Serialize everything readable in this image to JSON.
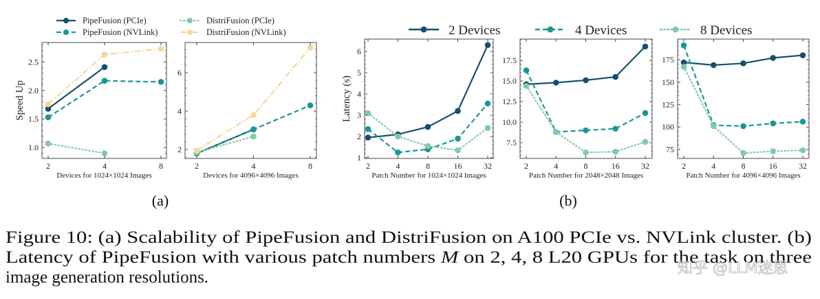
{
  "colors": {
    "dark": "#14506b",
    "teal": "#1b9696",
    "green": "#80cba3",
    "yellow": "#f6d79c"
  },
  "legend_a": [
    {
      "name": "PipeFusion (PCIe)",
      "color": "#14506b",
      "style": "solid"
    },
    {
      "name": "PipeFusion (NVLink)",
      "color": "#1b9696",
      "style": "dashed"
    },
    {
      "name": "DistriFusion (PCIe)",
      "color": "#80cba3",
      "style": "dotted"
    },
    {
      "name": "DistriFusion (NVLink)",
      "color": "#f6d79c",
      "style": "dashdot"
    }
  ],
  "legend_b": [
    {
      "name": "2 Devices",
      "color": "#14506b",
      "style": "solid"
    },
    {
      "name": "4 Devices",
      "color": "#1b9696",
      "style": "dashed"
    },
    {
      "name": "8 Devices",
      "color": "#80cba3",
      "style": "dotted"
    }
  ],
  "chart_data": [
    {
      "type": "line",
      "group": "a",
      "xlabel": "Devices for 1024×1024 Images",
      "ylabel": "Speed Up",
      "categories": [
        "2",
        "4",
        "8"
      ],
      "ylim": [
        0.81,
        2.84
      ],
      "yticks": [
        1.0,
        1.5,
        2.0,
        2.5
      ],
      "yticklabels": [
        "1.0",
        "1.5",
        "2.0",
        "2.5"
      ],
      "series": [
        {
          "name": "PipeFusion (PCIe)",
          "values": [
            1.68,
            2.41,
            null
          ]
        },
        {
          "name": "PipeFusion (NVLink)",
          "values": [
            1.53,
            2.17,
            2.15
          ]
        },
        {
          "name": "DistriFusion (PCIe)",
          "values": [
            1.07,
            0.9,
            null
          ]
        },
        {
          "name": "DistriFusion (NVLink)",
          "values": [
            1.76,
            2.63,
            2.73
          ]
        }
      ]
    },
    {
      "type": "line",
      "group": "a",
      "xlabel": "Devices for 4096×4096 Images",
      "ylabel": "",
      "categories": [
        "2",
        "4",
        "8"
      ],
      "ylim": [
        1.54,
        7.57
      ],
      "yticks": [
        2,
        4,
        6
      ],
      "yticklabels": [
        "2",
        "4",
        "6"
      ],
      "series": [
        {
          "name": "PipeFusion (PCIe)",
          "values": [
            1.8,
            3.05,
            null
          ]
        },
        {
          "name": "PipeFusion (NVLink)",
          "values": [
            1.8,
            3.05,
            4.3
          ]
        },
        {
          "name": "DistriFusion (PCIe)",
          "values": [
            1.85,
            2.68,
            null
          ]
        },
        {
          "name": "DistriFusion (NVLink)",
          "values": [
            1.95,
            3.8,
            7.3
          ]
        }
      ]
    },
    {
      "type": "line",
      "group": "b",
      "xlabel": "Patch Number for 1024×1024 Images",
      "ylabel": "Latency (s)",
      "categories": [
        "2",
        "4",
        "8",
        "16",
        "32"
      ],
      "ylim": [
        0.97,
        6.58
      ],
      "yticks": [
        1,
        2,
        3,
        4,
        5,
        6
      ],
      "yticklabels": [
        "1",
        "2",
        "3",
        "4",
        "5",
        "6"
      ],
      "series": [
        {
          "name": "2 Devices",
          "values": [
            1.95,
            2.1,
            2.45,
            3.2,
            6.3
          ]
        },
        {
          "name": "4 Devices",
          "values": [
            2.35,
            1.25,
            1.4,
            1.9,
            3.55
          ]
        },
        {
          "name": "8 Devices",
          "values": [
            3.1,
            2.0,
            1.55,
            1.35,
            2.4
          ]
        }
      ]
    },
    {
      "type": "line",
      "group": "b",
      "xlabel": "Patch Number for 2048×2048 Images",
      "ylabel": "",
      "categories": [
        "2",
        "4",
        "8",
        "16",
        "32"
      ],
      "ylim": [
        5.58,
        20.1
      ],
      "yticks": [
        7.5,
        10,
        12.5,
        15,
        17.5
      ],
      "yticklabels": [
        "7.5",
        "10.0",
        "12.5",
        "15.0",
        "17.5"
      ],
      "series": [
        {
          "name": "2 Devices",
          "values": [
            14.6,
            14.8,
            15.1,
            15.5,
            19.2
          ]
        },
        {
          "name": "4 Devices",
          "values": [
            16.3,
            8.8,
            9.0,
            9.2,
            11.1
          ]
        },
        {
          "name": "8 Devices",
          "values": [
            14.4,
            8.8,
            6.3,
            6.4,
            7.6
          ]
        }
      ]
    },
    {
      "type": "line",
      "group": "b",
      "xlabel": "Patch Number for 4096×4096 Images",
      "ylabel": "",
      "categories": [
        "2",
        "4",
        "8",
        "16",
        "32"
      ],
      "ylim": [
        65,
        198
      ],
      "yticks": [
        75,
        100,
        125,
        150,
        175
      ],
      "yticklabels": [
        "75",
        "100",
        "125",
        "150",
        "175"
      ],
      "series": [
        {
          "name": "2 Devices",
          "values": [
            172,
            169,
            171,
            177,
            180
          ]
        },
        {
          "name": "4 Devices",
          "values": [
            191,
            102,
            101,
            104,
            106
          ]
        },
        {
          "name": "8 Devices",
          "values": [
            167,
            101,
            71,
            73,
            74
          ]
        }
      ]
    }
  ],
  "subfig_labels": {
    "a": "(a)",
    "b": "(b)"
  },
  "caption": {
    "line1": "Figure 10: (a) Scalability of PipeFusion and DistriFusion on A100 PCIe vs. NVLink cluster. (b)",
    "line2_pre": "Latency of PipeFusion with various patch numbers ",
    "line2_var": "M",
    "line2_post": " on 2, 4, 8 L20 GPUs for the task on three",
    "line3": "image generation resolutions."
  },
  "watermark": "知乎 @LLM迷思"
}
